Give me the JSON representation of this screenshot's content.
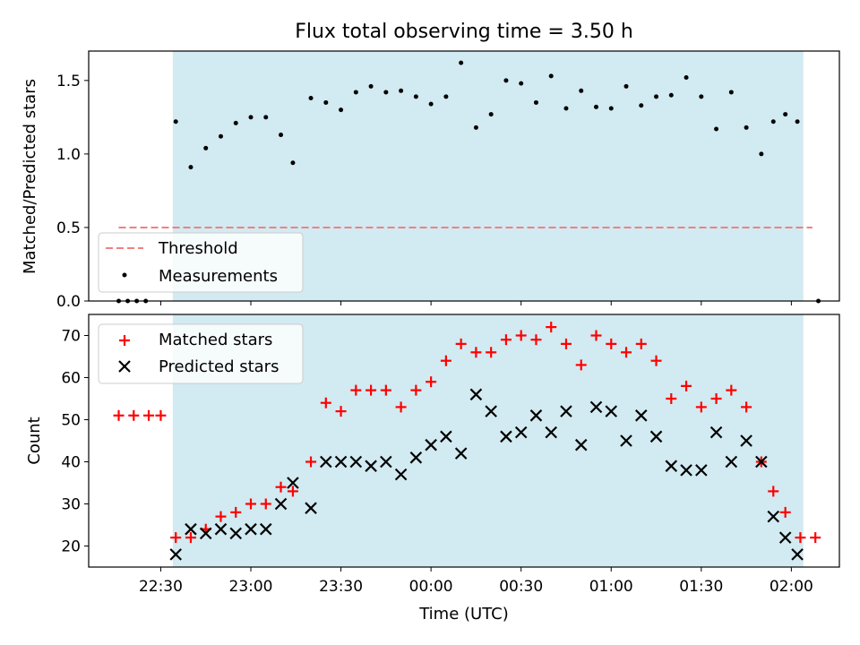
{
  "figure": {
    "title": "Flux total observing time = 3.50 h",
    "xlabel": "Time (UTC)",
    "x_tick_labels": [
      "22:30",
      "23:00",
      "23:30",
      "00:00",
      "00:30",
      "01:00",
      "01:30",
      "02:00"
    ],
    "shaded_start": "22:34",
    "shaded_end": "02:04",
    "shade_color": "#add8e6",
    "x_range": [
      "22:06",
      "02:16"
    ]
  },
  "chart_data": [
    {
      "type": "scatter",
      "ylabel": "Matched/Predicted stars",
      "ylim": [
        0,
        1.7
      ],
      "y_ticks": [
        0.0,
        0.5,
        1.0,
        1.5
      ],
      "y_tick_labels": [
        "0.0",
        "0.5",
        "1.0",
        "1.5"
      ],
      "legend_placement": "lower-left",
      "threshold": {
        "name": "Threshold",
        "value": 0.5,
        "x_start": "22:16",
        "x_end": "02:07",
        "color": "#f08080"
      },
      "series": [
        {
          "name": "Measurements",
          "color": "#000000",
          "points": [
            [
              "22:16",
              0.0
            ],
            [
              "22:19",
              0.0
            ],
            [
              "22:22",
              0.0
            ],
            [
              "22:25",
              0.0
            ],
            [
              "22:35",
              1.22
            ],
            [
              "22:40",
              0.91
            ],
            [
              "22:45",
              1.04
            ],
            [
              "22:50",
              1.12
            ],
            [
              "22:55",
              1.21
            ],
            [
              "23:00",
              1.25
            ],
            [
              "23:05",
              1.25
            ],
            [
              "23:10",
              1.13
            ],
            [
              "23:14",
              0.94
            ],
            [
              "23:20",
              1.38
            ],
            [
              "23:25",
              1.35
            ],
            [
              "23:30",
              1.3
            ],
            [
              "23:35",
              1.42
            ],
            [
              "23:40",
              1.46
            ],
            [
              "23:45",
              1.42
            ],
            [
              "23:50",
              1.43
            ],
            [
              "23:55",
              1.39
            ],
            [
              "00:00",
              1.34
            ],
            [
              "00:05",
              1.39
            ],
            [
              "00:10",
              1.62
            ],
            [
              "00:15",
              1.18
            ],
            [
              "00:20",
              1.27
            ],
            [
              "00:25",
              1.5
            ],
            [
              "00:30",
              1.48
            ],
            [
              "00:35",
              1.35
            ],
            [
              "00:40",
              1.53
            ],
            [
              "00:45",
              1.31
            ],
            [
              "00:50",
              1.43
            ],
            [
              "00:55",
              1.32
            ],
            [
              "01:00",
              1.31
            ],
            [
              "01:05",
              1.46
            ],
            [
              "01:10",
              1.33
            ],
            [
              "01:15",
              1.39
            ],
            [
              "01:20",
              1.4
            ],
            [
              "01:25",
              1.52
            ],
            [
              "01:30",
              1.39
            ],
            [
              "01:35",
              1.17
            ],
            [
              "01:40",
              1.42
            ],
            [
              "01:45",
              1.18
            ],
            [
              "01:50",
              1.0
            ],
            [
              "01:54",
              1.22
            ],
            [
              "01:58",
              1.27
            ],
            [
              "02:02",
              1.22
            ],
            [
              "02:09",
              0.0
            ]
          ]
        }
      ]
    },
    {
      "type": "scatter",
      "ylabel": "Count",
      "ylim": [
        15,
        75
      ],
      "y_ticks": [
        20,
        30,
        40,
        50,
        60,
        70
      ],
      "y_tick_labels": [
        "20",
        "30",
        "40",
        "50",
        "60",
        "70"
      ],
      "legend_placement": "upper-left",
      "series": [
        {
          "name": "Matched stars",
          "marker": "plus",
          "color": "#ff0000",
          "points": [
            [
              "22:16",
              51
            ],
            [
              "22:21",
              51
            ],
            [
              "22:26",
              51
            ],
            [
              "22:30",
              51
            ],
            [
              "22:35",
              22
            ],
            [
              "22:40",
              22
            ],
            [
              "22:45",
              24
            ],
            [
              "22:50",
              27
            ],
            [
              "22:55",
              28
            ],
            [
              "23:00",
              30
            ],
            [
              "23:05",
              30
            ],
            [
              "23:10",
              34
            ],
            [
              "23:14",
              33
            ],
            [
              "23:20",
              40
            ],
            [
              "23:25",
              54
            ],
            [
              "23:30",
              52
            ],
            [
              "23:35",
              57
            ],
            [
              "23:40",
              57
            ],
            [
              "23:45",
              57
            ],
            [
              "23:50",
              53
            ],
            [
              "23:55",
              57
            ],
            [
              "00:00",
              59
            ],
            [
              "00:05",
              64
            ],
            [
              "00:10",
              68
            ],
            [
              "00:15",
              66
            ],
            [
              "00:20",
              66
            ],
            [
              "00:25",
              69
            ],
            [
              "00:30",
              70
            ],
            [
              "00:35",
              69
            ],
            [
              "00:40",
              72
            ],
            [
              "00:45",
              68
            ],
            [
              "00:50",
              63
            ],
            [
              "00:55",
              70
            ],
            [
              "01:00",
              68
            ],
            [
              "01:05",
              66
            ],
            [
              "01:10",
              68
            ],
            [
              "01:15",
              64
            ],
            [
              "01:20",
              55
            ],
            [
              "01:25",
              58
            ],
            [
              "01:30",
              53
            ],
            [
              "01:35",
              55
            ],
            [
              "01:40",
              57
            ],
            [
              "01:45",
              53
            ],
            [
              "01:50",
              40
            ],
            [
              "01:54",
              33
            ],
            [
              "01:58",
              28
            ],
            [
              "02:03",
              22
            ],
            [
              "02:08",
              22
            ]
          ]
        },
        {
          "name": "Predicted stars",
          "marker": "x",
          "color": "#000000",
          "points": [
            [
              "22:35",
              18
            ],
            [
              "22:40",
              24
            ],
            [
              "22:45",
              23
            ],
            [
              "22:50",
              24
            ],
            [
              "22:55",
              23
            ],
            [
              "23:00",
              24
            ],
            [
              "23:05",
              24
            ],
            [
              "23:10",
              30
            ],
            [
              "23:14",
              35
            ],
            [
              "23:20",
              29
            ],
            [
              "23:25",
              40
            ],
            [
              "23:30",
              40
            ],
            [
              "23:35",
              40
            ],
            [
              "23:40",
              39
            ],
            [
              "23:45",
              40
            ],
            [
              "23:50",
              37
            ],
            [
              "23:55",
              41
            ],
            [
              "00:00",
              44
            ],
            [
              "00:05",
              46
            ],
            [
              "00:10",
              42
            ],
            [
              "00:15",
              56
            ],
            [
              "00:20",
              52
            ],
            [
              "00:25",
              46
            ],
            [
              "00:30",
              47
            ],
            [
              "00:35",
              51
            ],
            [
              "00:40",
              47
            ],
            [
              "00:45",
              52
            ],
            [
              "00:50",
              44
            ],
            [
              "00:55",
              53
            ],
            [
              "01:00",
              52
            ],
            [
              "01:05",
              45
            ],
            [
              "01:10",
              51
            ],
            [
              "01:15",
              46
            ],
            [
              "01:20",
              39
            ],
            [
              "01:25",
              38
            ],
            [
              "01:30",
              38
            ],
            [
              "01:35",
              47
            ],
            [
              "01:40",
              40
            ],
            [
              "01:45",
              45
            ],
            [
              "01:50",
              40
            ],
            [
              "01:54",
              27
            ],
            [
              "01:58",
              22
            ],
            [
              "02:02",
              18
            ]
          ]
        }
      ]
    }
  ]
}
